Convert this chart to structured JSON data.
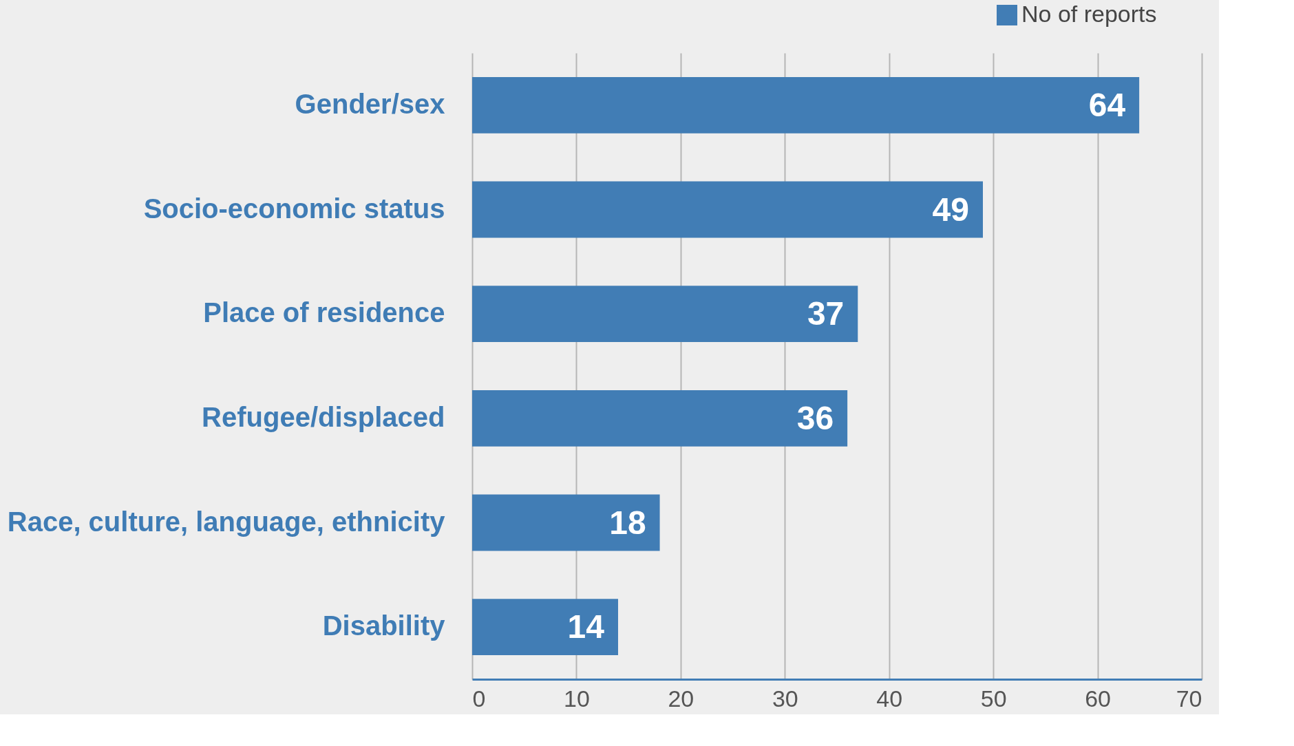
{
  "chart_data": {
    "type": "bar",
    "orientation": "horizontal",
    "categories": [
      "Gender/sex",
      "Socio-economic status",
      "Place of residence",
      "Refugee/displaced",
      "Race, culture, language, ethnicity",
      "Disability"
    ],
    "series": [
      {
        "name": "No of reports",
        "color": "#417db5",
        "values": [
          64,
          49,
          37,
          36,
          18,
          14
        ]
      }
    ],
    "xlim": [
      0,
      70
    ],
    "xticks": [
      0,
      10,
      20,
      30,
      40,
      50,
      60,
      70
    ],
    "grid": "x",
    "legend": "top right",
    "data_labels": true
  }
}
